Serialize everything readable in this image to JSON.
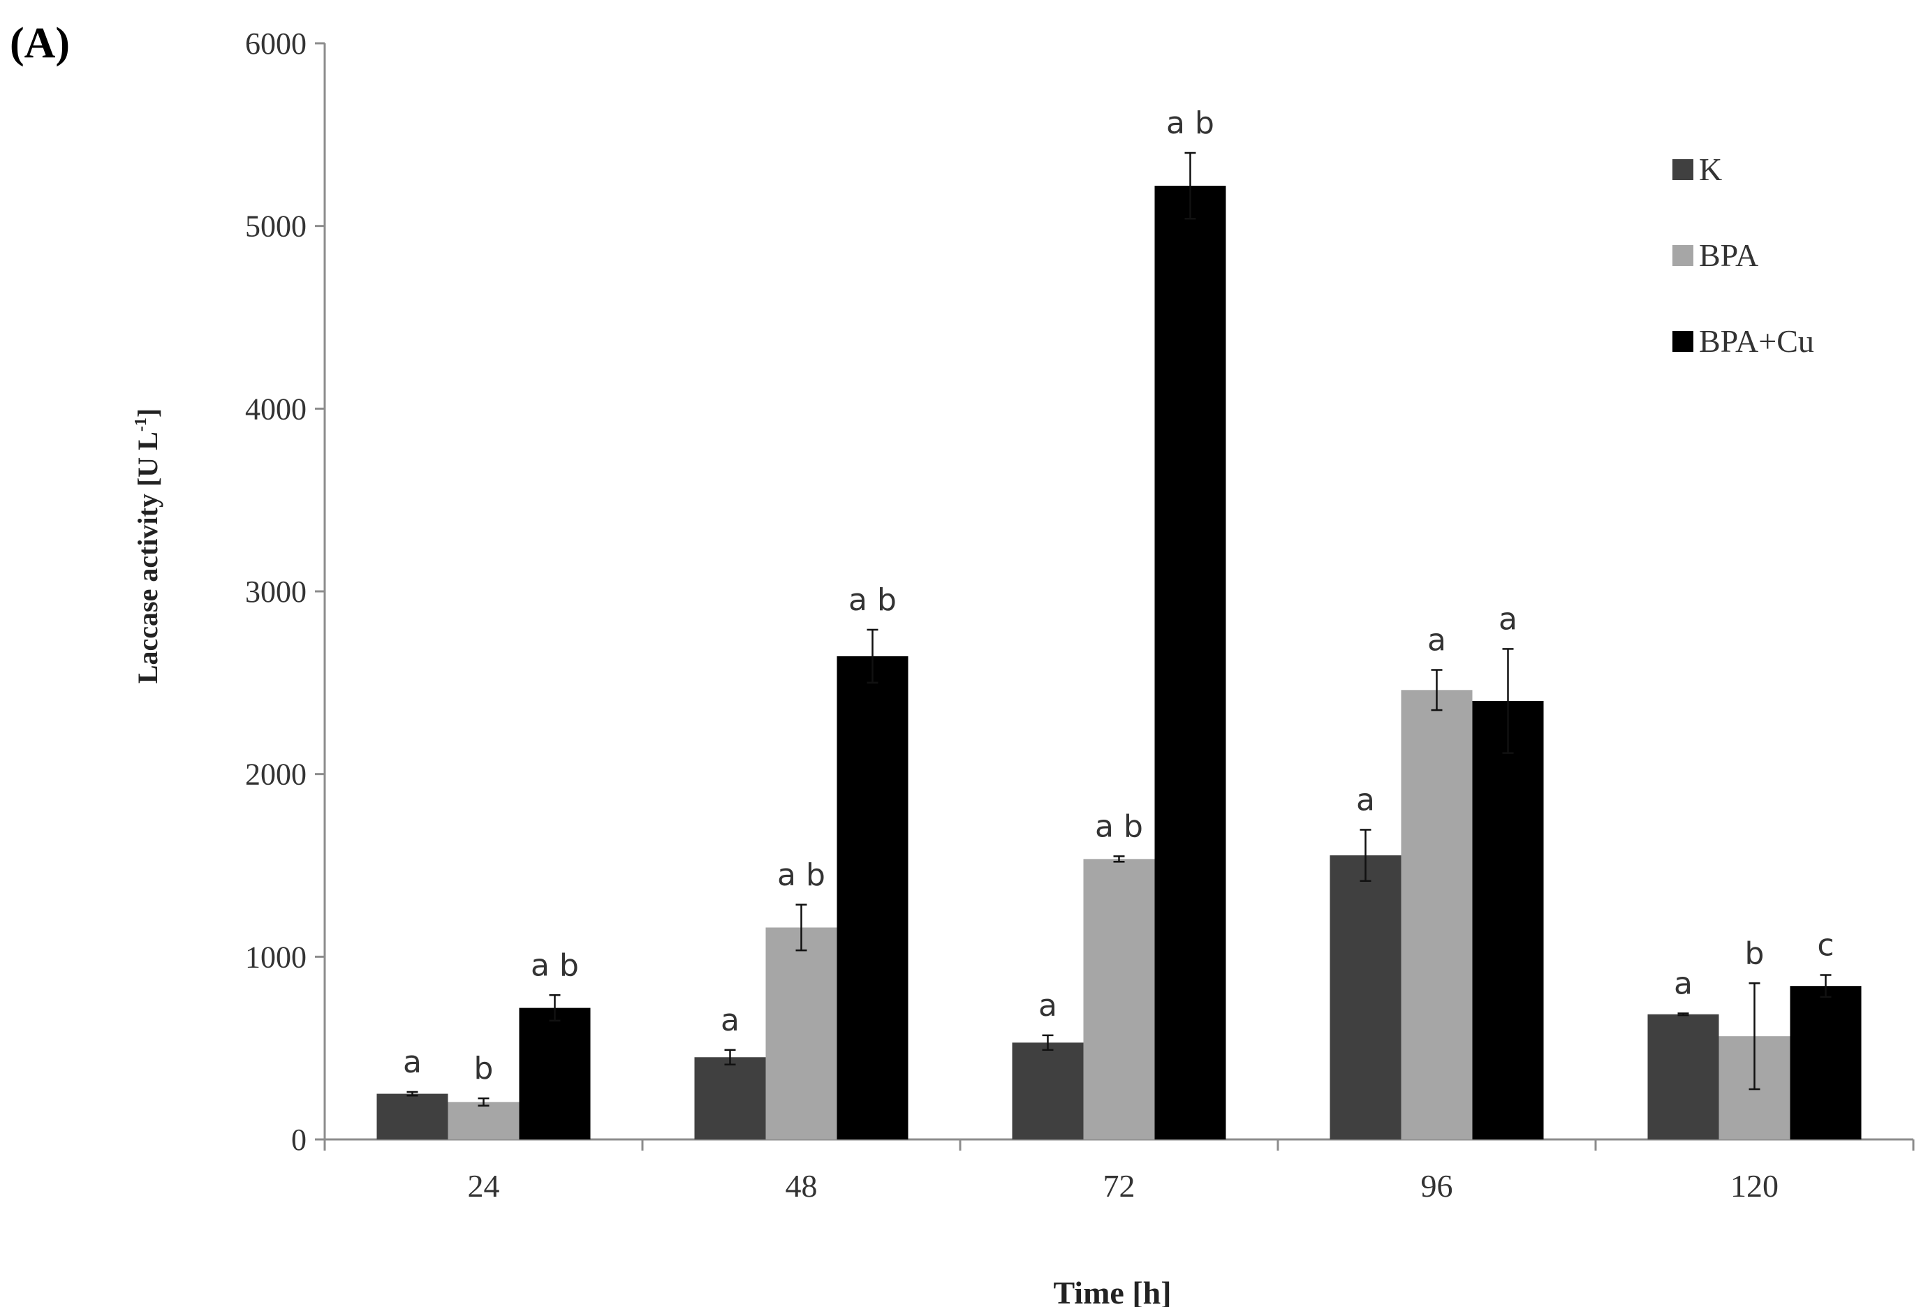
{
  "panel_label": "(A)",
  "chart_data": {
    "type": "bar",
    "title": "",
    "xlabel": "Time [h]",
    "ylabel": "Laccase activity [U L-1]",
    "ylabel_main": "Laccase activity [U L",
    "ylabel_sup": "-1",
    "ylabel_end": "]",
    "ylim": [
      0,
      6000
    ],
    "yticks": [
      0,
      1000,
      2000,
      3000,
      4000,
      5000,
      6000
    ],
    "grid": false,
    "legend_position": "top-right",
    "categories": [
      "24",
      "48",
      "72",
      "96",
      "120"
    ],
    "series": [
      {
        "name": "K",
        "color": "#404040",
        "values": [
          250,
          450,
          530,
          1555,
          685
        ],
        "errors": [
          10,
          40,
          40,
          140,
          5
        ],
        "labels": [
          "a",
          "a",
          "a",
          "a",
          "a"
        ]
      },
      {
        "name": "BPA",
        "color": "#a6a6a6",
        "values": [
          205,
          1160,
          1535,
          2460,
          565
        ],
        "errors": [
          20,
          125,
          15,
          110,
          290
        ],
        "labels": [
          "b",
          "a b",
          "a b",
          "a",
          "b"
        ]
      },
      {
        "name": "BPA+Cu",
        "color": "#000000",
        "values": [
          720,
          2645,
          5220,
          2400,
          840
        ],
        "errors": [
          70,
          145,
          180,
          285,
          60
        ],
        "labels": [
          "a b",
          "a b",
          "a b",
          "a",
          "c"
        ]
      }
    ]
  }
}
